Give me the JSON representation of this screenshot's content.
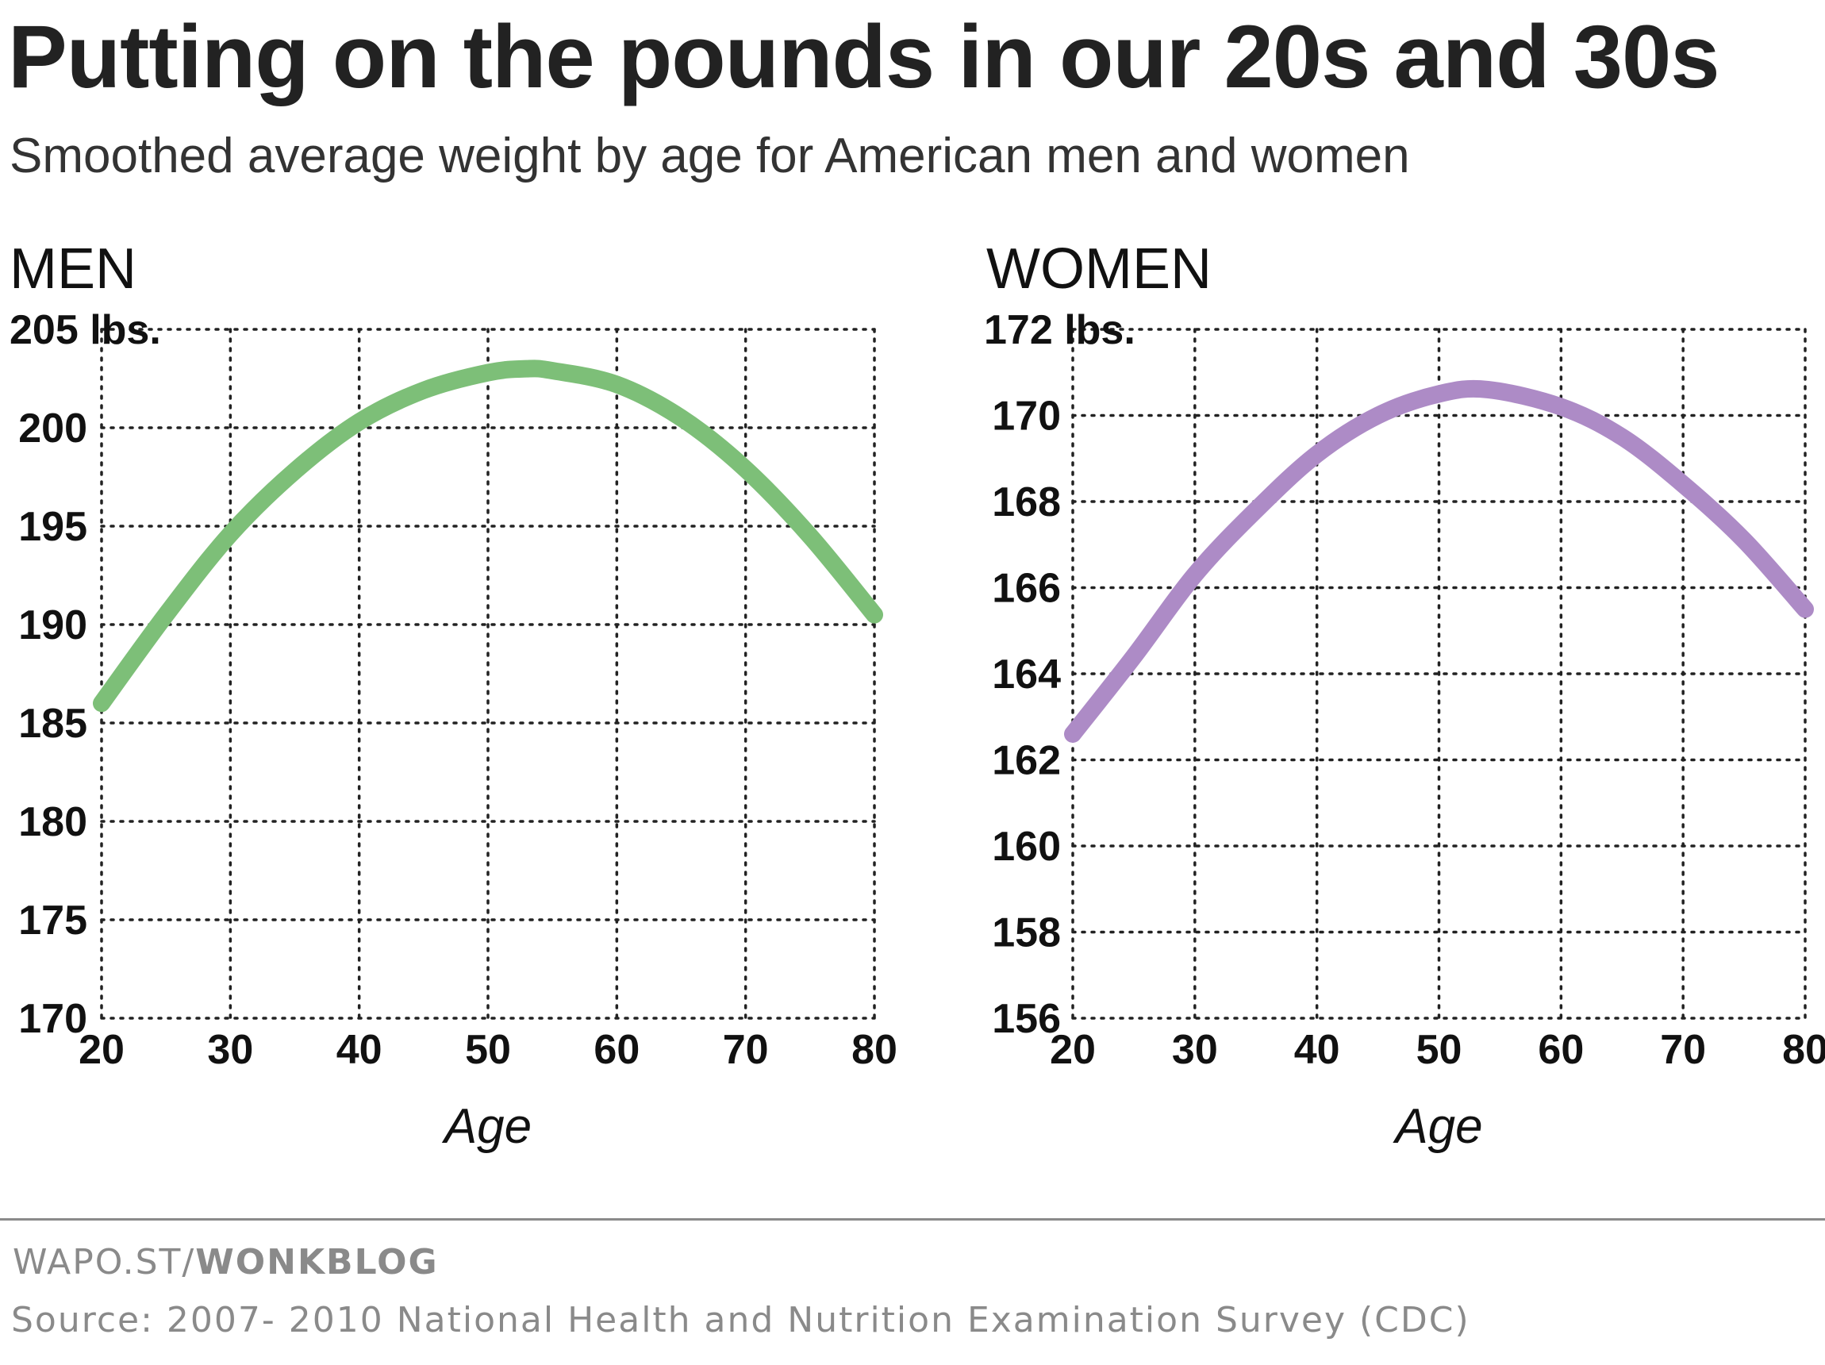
{
  "title": "Putting on the pounds in our 20s and 30s",
  "subtitle": "Smoothed average weight by age for American men and women",
  "footer": {
    "credit_prefix": "WAPO.ST/",
    "credit_bold": "WONKBLOG",
    "source": "Source: 2007- 2010 National Health and Nutrition Examination Survey (CDC)"
  },
  "colors": {
    "men_line": "#7dbf78",
    "women_line": "#ad8bc6",
    "grid": "#222222",
    "text": "#111111"
  },
  "chart_data": [
    {
      "type": "line",
      "panel_title": "MEN",
      "xlabel": "Age",
      "ylabel": "",
      "top_tick_label": "205 lbs.",
      "x_ticks": [
        20,
        30,
        40,
        50,
        60,
        70,
        80
      ],
      "y_ticks": [
        170,
        175,
        180,
        185,
        190,
        195,
        200,
        205
      ],
      "xlim": [
        20,
        80
      ],
      "ylim": [
        170,
        205
      ],
      "grid": true,
      "series": [
        {
          "x": [
            20,
            25,
            30,
            35,
            40,
            45,
            50,
            53,
            55,
            60,
            65,
            70,
            75,
            80
          ],
          "y": [
            186,
            190.5,
            194.6,
            197.8,
            200.3,
            201.9,
            202.8,
            203,
            202.9,
            202.2,
            200.5,
            197.9,
            194.5,
            190.5
          ]
        }
      ]
    },
    {
      "type": "line",
      "panel_title": "WOMEN",
      "xlabel": "Age",
      "ylabel": "",
      "top_tick_label": "172 lbs.",
      "x_ticks": [
        20,
        30,
        40,
        50,
        60,
        70,
        80
      ],
      "y_ticks": [
        156,
        158,
        160,
        162,
        164,
        166,
        168,
        170,
        172
      ],
      "xlim": [
        20,
        80
      ],
      "ylim": [
        156,
        172
      ],
      "grid": true,
      "series": [
        {
          "x": [
            20,
            25,
            30,
            35,
            40,
            45,
            50,
            54,
            60,
            65,
            70,
            75,
            80
          ],
          "y": [
            162.6,
            164.4,
            166.3,
            167.8,
            169.1,
            170,
            170.5,
            170.6,
            170.2,
            169.5,
            168.4,
            167.1,
            165.5
          ]
        }
      ]
    }
  ]
}
